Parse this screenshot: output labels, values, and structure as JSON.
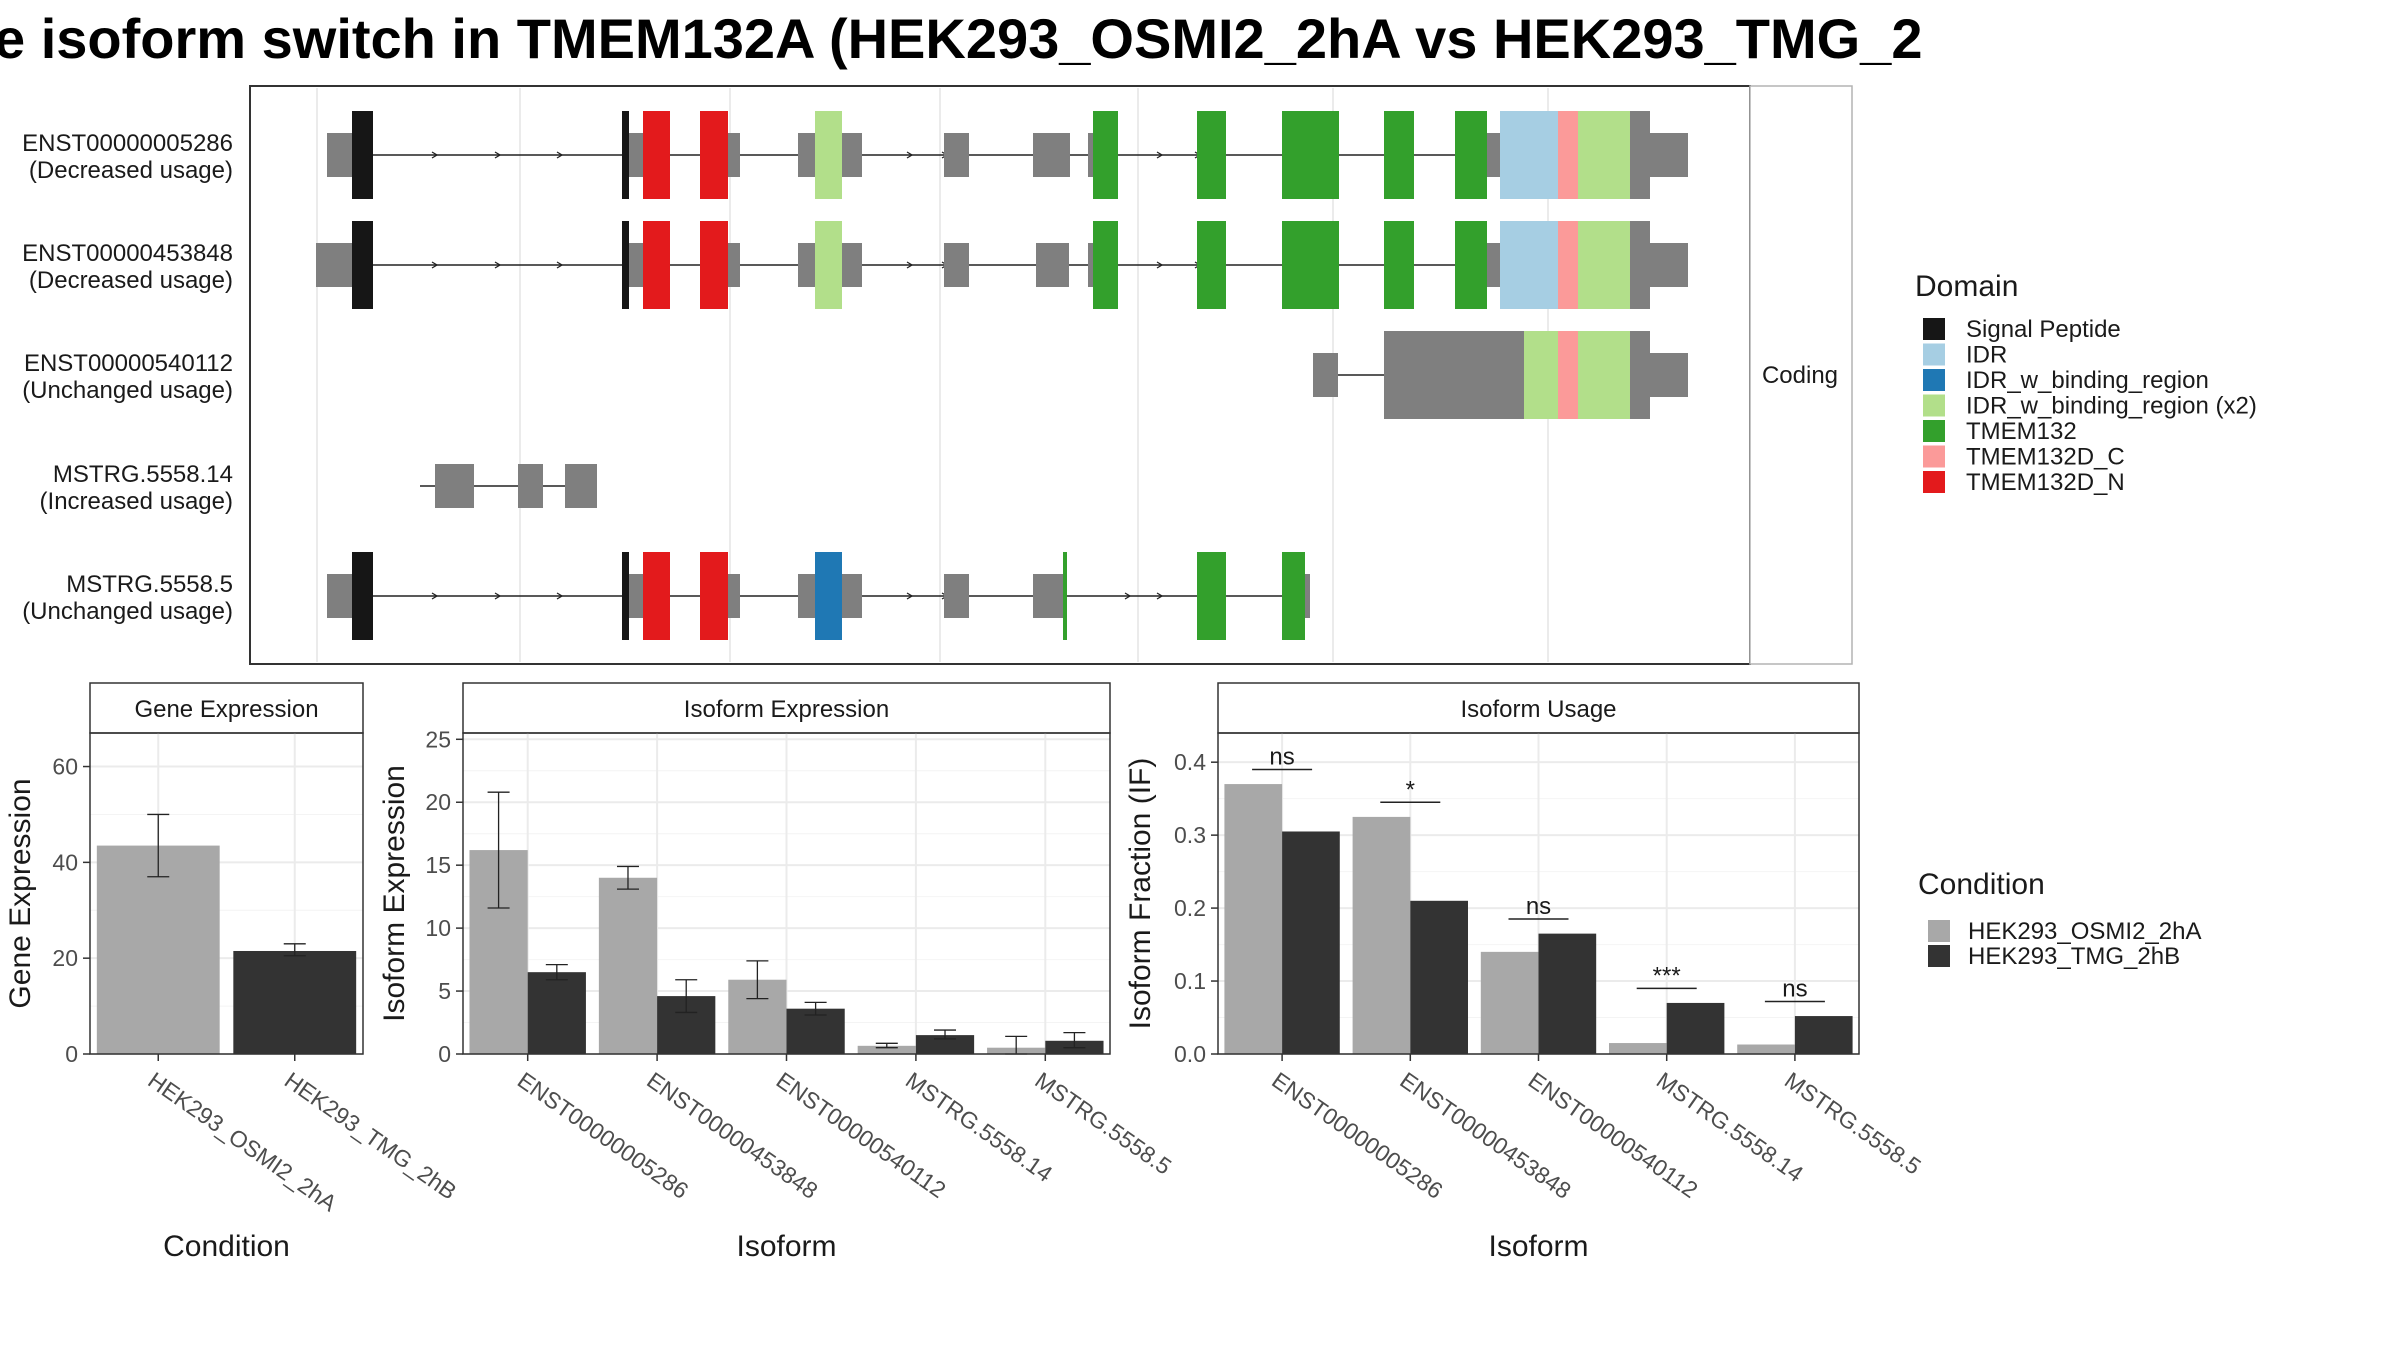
{
  "title": "e isoform switch in TMEM132A (HEK293_OSMI2_2hA vs HEK293_TMG_2",
  "colors": {
    "cond_a": "#a8a8a8",
    "cond_b": "#333333",
    "utr": "#7f7f7f",
    "domains": {
      "Signal Peptide": "#161616",
      "IDR": "#a6cee3",
      "IDR_w_binding_region": "#1f78b4",
      "IDR_w_binding_region (x2)": "#b2df8a",
      "TMEM132": "#33a02c",
      "TMEM132D_C": "#fb9a99",
      "TMEM132D_N": "#e31a1c"
    }
  },
  "structure": {
    "facet_label": "Coding",
    "transcripts": [
      {
        "id": "ENST00000005286",
        "label_line1": "ENST00000005286",
        "label_line2": "(Decreased usage)"
      },
      {
        "id": "ENST00000453848",
        "label_line1": "ENST00000453848",
        "label_line2": "(Decreased usage)"
      },
      {
        "id": "ENST00000540112",
        "label_line1": "ENST00000540112",
        "label_line2": "(Unchanged usage)"
      },
      {
        "id": "MSTRG.5558.14",
        "label_line1": "MSTRG.5558.14",
        "label_line2": "(Increased usage)"
      },
      {
        "id": "MSTRG.5558.5",
        "label_line1": "MSTRG.5558.5",
        "label_line2": "(Unchanged usage)"
      }
    ]
  },
  "domain_legend": {
    "title": "Domain",
    "items": [
      "Signal Peptide",
      "IDR",
      "IDR_w_binding_region",
      "IDR_w_binding_region (x2)",
      "TMEM132",
      "TMEM132D_C",
      "TMEM132D_N"
    ]
  },
  "condition_legend": {
    "title": "Condition",
    "items": [
      "HEK293_OSMI2_2hA",
      "HEK293_TMG_2hB"
    ]
  },
  "chart_data": [
    {
      "type": "bar",
      "title": "Gene Expression",
      "xlabel": "Condition",
      "ylabel": "Gene Expression",
      "categories": [
        "HEK293_OSMI2_2hA",
        "HEK293_TMG_2hB"
      ],
      "values": [
        43.5,
        21.5
      ],
      "error_low": [
        37,
        20.5
      ],
      "error_high": [
        50,
        23
      ],
      "ylim": [
        0,
        67
      ],
      "yticks": [
        0,
        20,
        40,
        60
      ],
      "grid": true
    },
    {
      "type": "bar",
      "title": "Isoform Expression",
      "xlabel": "Isoform",
      "ylabel": "Isoform Expression",
      "categories": [
        "ENST00000005286",
        "ENST00000453848",
        "ENST00000540112",
        "MSTRG.5558.14",
        "MSTRG.5558.5"
      ],
      "series": [
        {
          "name": "HEK293_OSMI2_2hA",
          "values": [
            16.2,
            14.0,
            5.9,
            0.65,
            0.5
          ],
          "error_low": [
            11.6,
            13.1,
            4.4,
            0.5,
            0.0
          ],
          "error_high": [
            20.8,
            14.9,
            7.4,
            0.85,
            1.4
          ]
        },
        {
          "name": "HEK293_TMG_2hB",
          "values": [
            6.5,
            4.6,
            3.6,
            1.5,
            1.05
          ],
          "error_low": [
            5.9,
            3.3,
            3.1,
            1.2,
            0.5
          ],
          "error_high": [
            7.1,
            5.9,
            4.1,
            1.9,
            1.7
          ]
        }
      ],
      "ylim": [
        0,
        25.5
      ],
      "yticks": [
        0,
        5,
        10,
        15,
        20,
        25
      ],
      "grid": true
    },
    {
      "type": "bar",
      "title": "Isoform Usage",
      "xlabel": "Isoform",
      "ylabel": "Isoform Fraction (IF)",
      "categories": [
        "ENST00000005286",
        "ENST00000453848",
        "ENST00000540112",
        "MSTRG.5558.14",
        "MSTRG.5558.5"
      ],
      "series": [
        {
          "name": "HEK293_OSMI2_2hA",
          "values": [
            0.37,
            0.325,
            0.14,
            0.015,
            0.013
          ]
        },
        {
          "name": "HEK293_TMG_2hB",
          "values": [
            0.305,
            0.21,
            0.165,
            0.07,
            0.052
          ]
        }
      ],
      "significance": [
        "ns",
        "*",
        "ns",
        "***",
        "ns"
      ],
      "significance_y": [
        0.39,
        0.345,
        0.185,
        0.09,
        0.072
      ],
      "ylim": [
        0,
        0.44
      ],
      "yticks": [
        0.0,
        0.1,
        0.2,
        0.3,
        0.4
      ],
      "grid": true
    }
  ]
}
